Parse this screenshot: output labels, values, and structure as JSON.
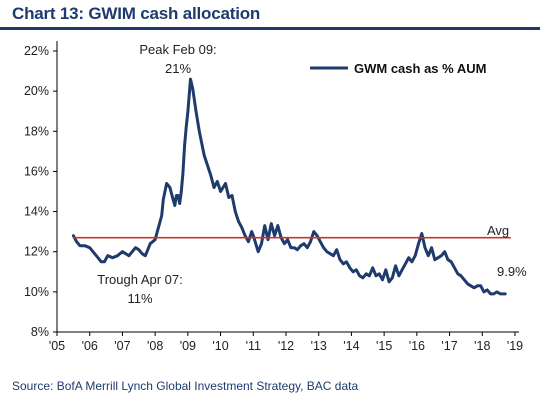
{
  "header": {
    "title": "Chart 13: GWIM cash allocation"
  },
  "footer": {
    "source": "Source:  BofA Merrill Lynch Global Investment Strategy, BAC data"
  },
  "chart_data": {
    "type": "line",
    "title": "Chart 13: GWIM cash allocation",
    "xlabel": "",
    "ylabel": "",
    "x_ticks": [
      "'05",
      "'06",
      "'07",
      "'08",
      "'09",
      "'10",
      "'11",
      "'12",
      "'13",
      "'14",
      "'15",
      "'16",
      "'17",
      "'18",
      "'19"
    ],
    "y_ticks": [
      "8%",
      "10%",
      "12%",
      "14%",
      "16%",
      "18%",
      "20%",
      "22%"
    ],
    "xlim": [
      2005,
      2019
    ],
    "ylim": [
      8,
      22
    ],
    "grid": false,
    "legend": {
      "position": "top-right",
      "label": "GWM cash as % AUM"
    },
    "series": [
      {
        "name": "GWM cash as % AUM",
        "color": "#1f3b6d",
        "x": [
          2005.5,
          2005.6,
          2005.7,
          2005.85,
          2006.0,
          2006.1,
          2006.2,
          2006.35,
          2006.45,
          2006.55,
          2006.7,
          2006.85,
          2007.0,
          2007.1,
          2007.2,
          2007.3,
          2007.4,
          2007.5,
          2007.6,
          2007.7,
          2007.75,
          2007.85,
          2008.0,
          2008.1,
          2008.2,
          2008.25,
          2008.35,
          2008.45,
          2008.55,
          2008.6,
          2008.65,
          2008.7,
          2008.75,
          2008.8,
          2008.85,
          2008.9,
          2008.95,
          2009.0,
          2009.08,
          2009.15,
          2009.25,
          2009.35,
          2009.5,
          2009.6,
          2009.7,
          2009.8,
          2009.9,
          2010.0,
          2010.15,
          2010.25,
          2010.35,
          2010.45,
          2010.55,
          2010.65,
          2010.75,
          2010.85,
          2010.95,
          2011.0,
          2011.15,
          2011.25,
          2011.35,
          2011.45,
          2011.55,
          2011.65,
          2011.75,
          2011.85,
          2011.95,
          2012.05,
          2012.15,
          2012.25,
          2012.35,
          2012.45,
          2012.55,
          2012.65,
          2012.75,
          2012.85,
          2012.95,
          2013.05,
          2013.15,
          2013.25,
          2013.35,
          2013.45,
          2013.55,
          2013.65,
          2013.75,
          2013.85,
          2013.95,
          2014.05,
          2014.15,
          2014.25,
          2014.35,
          2014.45,
          2014.55,
          2014.65,
          2014.75,
          2014.85,
          2014.95,
          2015.05,
          2015.15,
          2015.25,
          2015.35,
          2015.45,
          2015.55,
          2015.65,
          2015.75,
          2015.85,
          2015.95,
          2016.05,
          2016.15,
          2016.25,
          2016.35,
          2016.45,
          2016.55,
          2016.65,
          2016.75,
          2016.85,
          2016.95,
          2017.05,
          2017.15,
          2017.25,
          2017.35,
          2017.45,
          2017.55,
          2017.65,
          2017.75,
          2017.85,
          2017.95,
          2018.05,
          2018.15,
          2018.25,
          2018.35,
          2018.45,
          2018.55,
          2018.7
        ],
        "values": [
          12.8,
          12.5,
          12.3,
          12.3,
          12.2,
          12.0,
          11.8,
          11.5,
          11.5,
          11.8,
          11.7,
          11.8,
          12.0,
          11.9,
          11.8,
          12.0,
          12.2,
          12.1,
          11.9,
          11.8,
          12.0,
          12.4,
          12.6,
          13.2,
          13.8,
          14.6,
          15.4,
          15.2,
          14.6,
          14.3,
          14.8,
          14.8,
          14.4,
          15.0,
          15.9,
          17.3,
          18.2,
          19.0,
          20.6,
          20.1,
          19.0,
          18.0,
          16.8,
          16.3,
          15.8,
          15.2,
          15.5,
          15.0,
          15.4,
          14.7,
          14.8,
          14.0,
          13.5,
          13.2,
          12.8,
          12.5,
          13.0,
          12.8,
          12.0,
          12.4,
          13.3,
          12.6,
          13.4,
          12.8,
          13.3,
          12.7,
          12.4,
          12.6,
          12.2,
          12.2,
          12.1,
          12.3,
          12.4,
          12.2,
          12.5,
          13.0,
          12.8,
          12.5,
          12.2,
          12.0,
          11.9,
          11.8,
          12.1,
          11.6,
          11.4,
          11.5,
          11.2,
          11.0,
          11.1,
          10.8,
          10.7,
          10.9,
          10.8,
          11.2,
          10.8,
          10.9,
          10.6,
          11.1,
          10.5,
          10.7,
          11.3,
          10.8,
          11.1,
          11.4,
          11.7,
          11.5,
          11.8,
          12.4,
          12.9,
          12.2,
          11.8,
          12.2,
          11.6,
          11.7,
          11.8,
          12.0,
          11.6,
          11.5,
          11.2,
          10.9,
          10.8,
          10.6,
          10.4,
          10.3,
          10.2,
          10.3,
          10.3,
          10.0,
          10.1,
          9.9,
          9.9,
          10.0,
          9.9,
          9.9
        ]
      },
      {
        "name": "Avg",
        "color": "#c0392b",
        "x": [
          2005.5,
          2018.85
        ],
        "values": [
          12.7,
          12.7
        ]
      }
    ],
    "annotations": [
      {
        "line1": "Peak Feb 09:",
        "line2": "21%",
        "x": 2009.1,
        "y": 20.6
      },
      {
        "line1": "Trough Apr 07:",
        "line2": "11%",
        "x": 2007.3,
        "y": 11.0
      },
      {
        "text": "Avg",
        "x": 2018.55,
        "y": 12.7
      },
      {
        "text": "9.9%",
        "x": 2018.8,
        "y": 9.9
      }
    ]
  }
}
